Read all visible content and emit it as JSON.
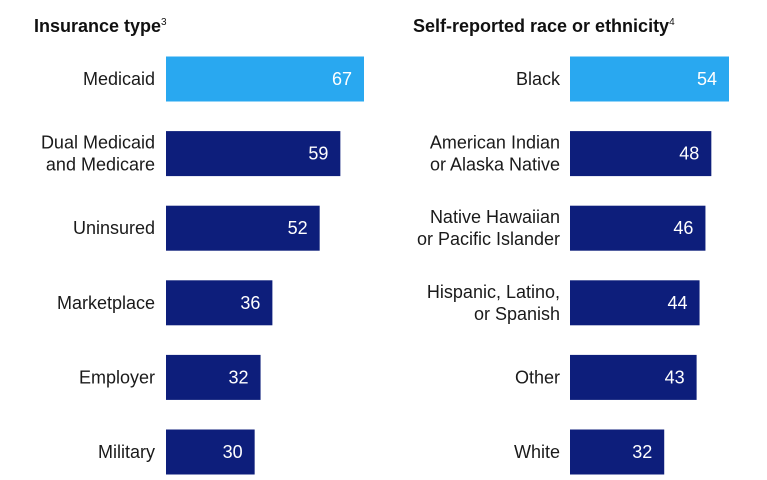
{
  "colors": {
    "highlight": "#29A8F0",
    "default": "#0D1E7B",
    "label_text": "#1a1a1a",
    "value_text": "#ffffff"
  },
  "chart_data": [
    {
      "type": "bar",
      "orientation": "horizontal",
      "title": "Insurance type",
      "title_footnote": "3",
      "categories": [
        [
          "Medicaid"
        ],
        [
          "Dual Medicaid",
          "and Medicare"
        ],
        [
          "Uninsured"
        ],
        [
          "Marketplace"
        ],
        [
          "Employer"
        ],
        [
          "Military"
        ]
      ],
      "values": [
        67,
        59,
        52,
        36,
        32,
        30
      ],
      "highlight_index": 0,
      "xlim": [
        0,
        67
      ]
    },
    {
      "type": "bar",
      "orientation": "horizontal",
      "title": "Self-reported race or ethnicity",
      "title_footnote": "4",
      "categories": [
        [
          "Black"
        ],
        [
          "American Indian",
          "or Alaska Native"
        ],
        [
          "Native Hawaiian",
          "or Pacific Islander"
        ],
        [
          "Hispanic, Latino,",
          "or Spanish"
        ],
        [
          "Other"
        ],
        [
          "White"
        ]
      ],
      "values": [
        54,
        48,
        46,
        44,
        43,
        32
      ],
      "highlight_index": 0,
      "xlim": [
        0,
        54
      ]
    }
  ]
}
